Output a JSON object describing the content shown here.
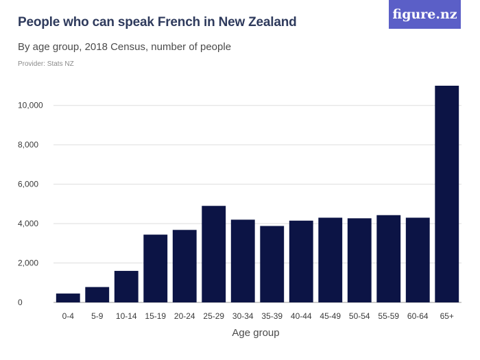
{
  "header": {
    "title": "People who can speak French in New Zealand",
    "subtitle": "By age group, 2018 Census, number of people",
    "provider": "Provider: Stats NZ",
    "logo_text": "figure.nz"
  },
  "colors": {
    "bar": "#0c1445",
    "logo_bg": "#5b5fc7",
    "grid": "#dddddd",
    "title": "#2e3a5c"
  },
  "chart_data": {
    "type": "bar",
    "categories": [
      "0-4",
      "5-9",
      "10-14",
      "15-19",
      "20-24",
      "25-29",
      "30-34",
      "35-39",
      "40-44",
      "45-49",
      "50-54",
      "55-59",
      "60-64",
      "65+"
    ],
    "values": [
      450,
      780,
      1600,
      3440,
      3680,
      4900,
      4200,
      3880,
      4150,
      4300,
      4270,
      4430,
      4300,
      11000
    ],
    "xlabel": "Age group",
    "ylabel": "",
    "ylim": [
      0,
      11000
    ],
    "yticks": [
      0,
      2000,
      4000,
      6000,
      8000,
      10000
    ],
    "ytick_labels": [
      "0",
      "2,000",
      "4,000",
      "6,000",
      "8,000",
      "10,000"
    ],
    "grid": true,
    "legend": "none"
  }
}
